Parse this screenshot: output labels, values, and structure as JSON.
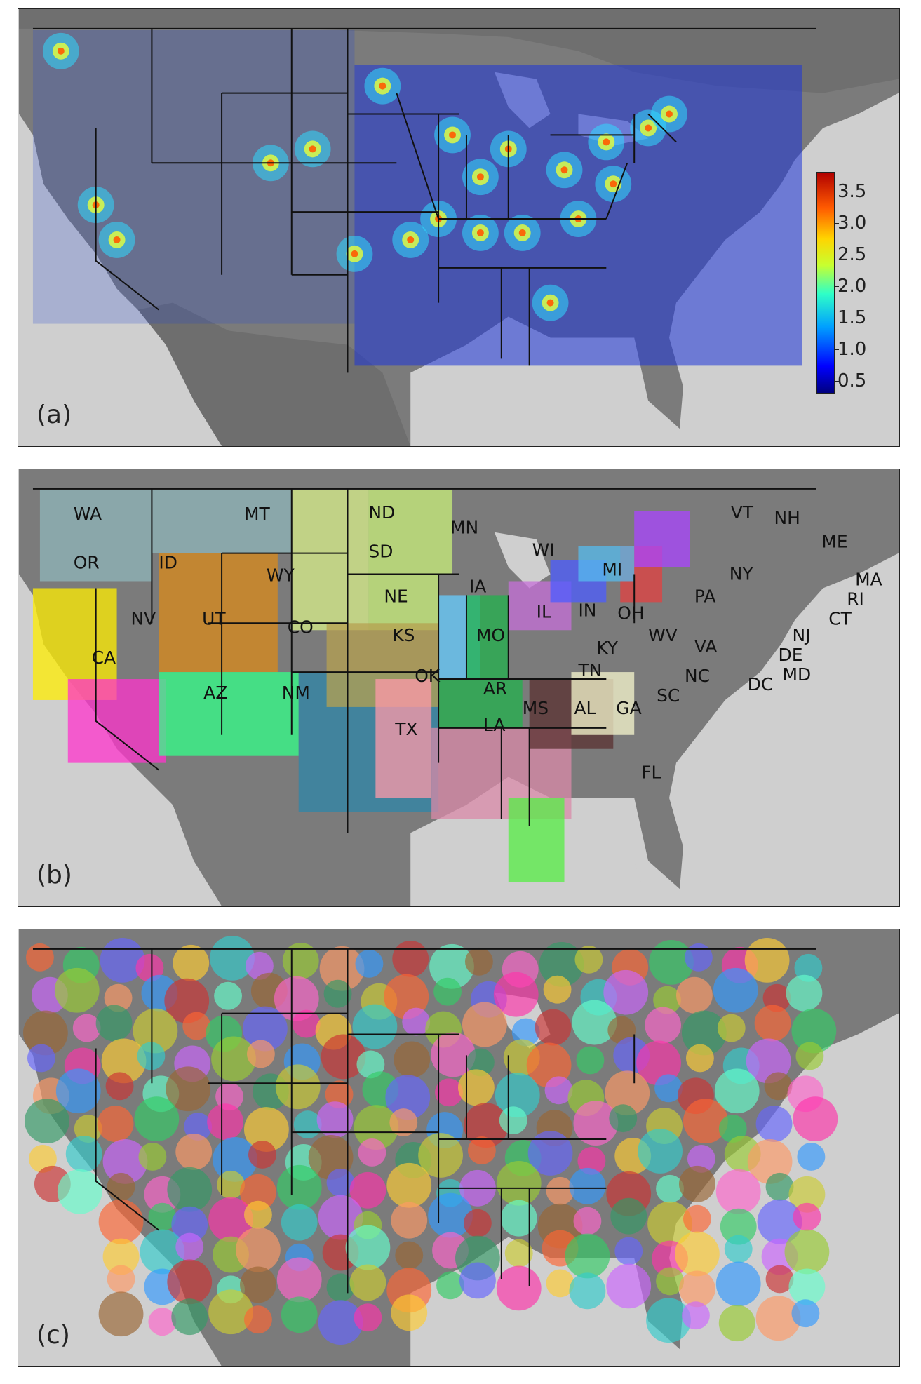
{
  "panels": [
    {
      "label": "(a)"
    },
    {
      "label": "(b)"
    },
    {
      "label": "(c)"
    }
  ],
  "colorbar": {
    "ticks": [
      "3.5",
      "3.0",
      "2.5",
      "2.0",
      "1.5",
      "1.0",
      "0.5"
    ],
    "values": [
      3.5,
      3.0,
      2.5,
      2.0,
      1.5,
      1.0,
      0.5
    ],
    "range": [
      0.3,
      3.8
    ],
    "colormap": "jet"
  },
  "states": [
    "WA",
    "MT",
    "ND",
    "MN",
    "VT",
    "NH",
    "ME",
    "OR",
    "ID",
    "SD",
    "WI",
    "MI",
    "NY",
    "MA",
    "RI",
    "WY",
    "IA",
    "NE",
    "PA",
    "CT",
    "NV",
    "UT",
    "IL",
    "IN",
    "OH",
    "CO",
    "KS",
    "MO",
    "WV",
    "VA",
    "NJ",
    "DE",
    "MD",
    "CA",
    "KY",
    "OK",
    "TN",
    "NC",
    "DC",
    "AR",
    "SC",
    "AZ",
    "NM",
    "MS",
    "AL",
    "GA",
    "LA",
    "TX",
    "FL"
  ],
  "colors": {
    "land": "#7b7b7b",
    "water": "#cfcfcf",
    "border": "#111111"
  }
}
